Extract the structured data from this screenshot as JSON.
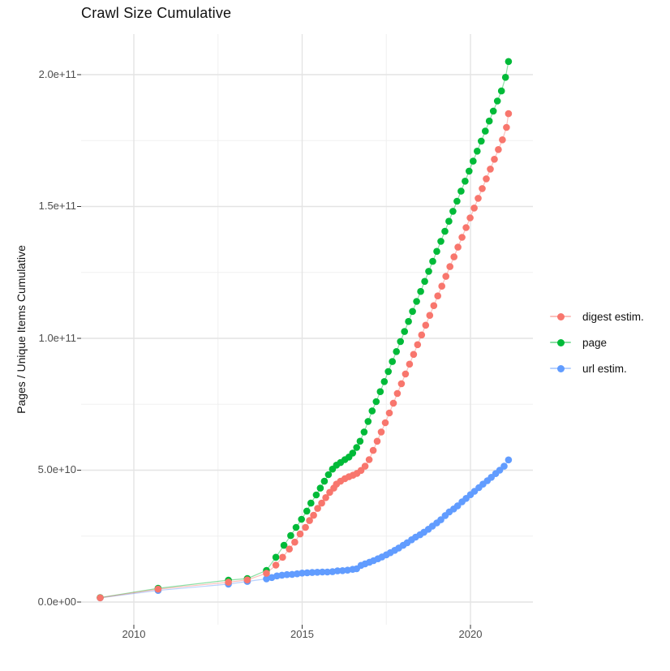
{
  "title": "Crawl Size Cumulative",
  "axes": {
    "x": {
      "ticks": [
        {
          "label": "2010",
          "year": 2010
        },
        {
          "label": "2015",
          "year": 2015
        },
        {
          "label": "2020",
          "year": 2020
        }
      ],
      "minor_years": [
        2012.5,
        2017.5
      ]
    },
    "y": {
      "title": "Pages / Unique Items Cumulative",
      "ticks": [
        {
          "label": "0.0e+00",
          "value_billions": 0
        },
        {
          "label": "5.0e+10",
          "value_billions": 50
        },
        {
          "label": "1.0e+11",
          "value_billions": 100
        },
        {
          "label": "1.5e+11",
          "value_billions": 150
        },
        {
          "label": "2.0e+11",
          "value_billions": 200
        }
      ],
      "minor_values_billions": [
        25,
        75,
        125,
        175
      ]
    }
  },
  "legend": {
    "items": [
      {
        "label": "digest estim.",
        "color": "#F8766D"
      },
      {
        "label": "page",
        "color": "#00BA38"
      },
      {
        "label": "url estim.",
        "color": "#619CFF"
      }
    ]
  },
  "chart_data": {
    "type": "scatter",
    "x_unit": "year (decimal)",
    "y_unit": "cumulative count, billions (1e9)",
    "title": "Crawl Size Cumulative",
    "xlabel": "",
    "ylabel": "Pages / Unique Items Cumulative",
    "xlim": [
      2008.4,
      2021.9
    ],
    "ylim_billions": [
      -9,
      215
    ],
    "grid": true,
    "legend_position": "right",
    "marker_radius_px": 4.3,
    "line_opacity": 0.45,
    "series": [
      {
        "name": "digest estim.",
        "color": "#F8766D",
        "points": [
          [
            2009.0,
            1.6
          ],
          [
            2010.72,
            4.9
          ],
          [
            2012.81,
            7.5
          ],
          [
            2013.37,
            8.4
          ],
          [
            2013.94,
            10.9
          ],
          [
            2014.22,
            14.0
          ],
          [
            2014.42,
            17.0
          ],
          [
            2014.62,
            20.1
          ],
          [
            2014.78,
            22.7
          ],
          [
            2014.94,
            25.8
          ],
          [
            2015.1,
            28.3
          ],
          [
            2015.22,
            30.9
          ],
          [
            2015.34,
            32.9
          ],
          [
            2015.46,
            35.5
          ],
          [
            2015.58,
            37.5
          ],
          [
            2015.7,
            39.6
          ],
          [
            2015.82,
            41.6
          ],
          [
            2015.94,
            43.2
          ],
          [
            2016.02,
            44.7
          ],
          [
            2016.14,
            45.8
          ],
          [
            2016.27,
            46.8
          ],
          [
            2016.39,
            47.5
          ],
          [
            2016.51,
            48.1
          ],
          [
            2016.63,
            48.8
          ],
          [
            2016.75,
            49.9
          ],
          [
            2016.87,
            51.5
          ],
          [
            2016.99,
            54.0
          ],
          [
            2017.11,
            57.5
          ],
          [
            2017.23,
            61.0
          ],
          [
            2017.35,
            64.5
          ],
          [
            2017.47,
            68.0
          ],
          [
            2017.59,
            71.7
          ],
          [
            2017.71,
            75.4
          ],
          [
            2017.83,
            79.1
          ],
          [
            2017.95,
            82.8
          ],
          [
            2018.07,
            86.5
          ],
          [
            2018.19,
            90.2
          ],
          [
            2018.31,
            93.9
          ],
          [
            2018.43,
            97.6
          ],
          [
            2018.55,
            101.3
          ],
          [
            2018.67,
            105.0
          ],
          [
            2018.79,
            108.7
          ],
          [
            2018.91,
            112.4
          ],
          [
            2019.03,
            116.1
          ],
          [
            2019.15,
            119.8
          ],
          [
            2019.27,
            123.5
          ],
          [
            2019.39,
            127.2
          ],
          [
            2019.51,
            130.9
          ],
          [
            2019.63,
            134.6
          ],
          [
            2019.75,
            138.3
          ],
          [
            2019.87,
            142.0
          ],
          [
            2019.99,
            145.7
          ],
          [
            2020.11,
            149.4
          ],
          [
            2020.23,
            153.1
          ],
          [
            2020.35,
            156.8
          ],
          [
            2020.47,
            160.5
          ],
          [
            2020.59,
            164.2
          ],
          [
            2020.71,
            167.9
          ],
          [
            2020.83,
            171.6
          ],
          [
            2020.95,
            175.3
          ],
          [
            2021.07,
            180.0
          ],
          [
            2021.13,
            185.2
          ]
        ]
      },
      {
        "name": "page",
        "color": "#00BA38",
        "points": [
          [
            2009.0,
            1.7
          ],
          [
            2010.72,
            5.2
          ],
          [
            2012.81,
            8.3
          ],
          [
            2013.37,
            8.9
          ],
          [
            2013.94,
            12.0
          ],
          [
            2014.22,
            17.0
          ],
          [
            2014.46,
            21.5
          ],
          [
            2014.66,
            25.2
          ],
          [
            2014.82,
            28.3
          ],
          [
            2014.98,
            31.4
          ],
          [
            2015.14,
            34.5
          ],
          [
            2015.26,
            37.5
          ],
          [
            2015.42,
            40.6
          ],
          [
            2015.54,
            43.2
          ],
          [
            2015.66,
            45.8
          ],
          [
            2015.78,
            48.3
          ],
          [
            2015.9,
            50.4
          ],
          [
            2016.02,
            51.9
          ],
          [
            2016.14,
            52.9
          ],
          [
            2016.27,
            54.0
          ],
          [
            2016.39,
            55.0
          ],
          [
            2016.5,
            56.5
          ],
          [
            2016.62,
            58.6
          ],
          [
            2016.72,
            61.0
          ],
          [
            2016.84,
            64.5
          ],
          [
            2016.96,
            68.5
          ],
          [
            2017.08,
            72.5
          ],
          [
            2017.2,
            76.0
          ],
          [
            2017.32,
            79.8
          ],
          [
            2017.44,
            83.6
          ],
          [
            2017.56,
            87.4
          ],
          [
            2017.68,
            91.2
          ],
          [
            2017.8,
            95.0
          ],
          [
            2017.92,
            98.8
          ],
          [
            2018.04,
            102.6
          ],
          [
            2018.16,
            106.4
          ],
          [
            2018.28,
            110.2
          ],
          [
            2018.4,
            114.0
          ],
          [
            2018.52,
            117.8
          ],
          [
            2018.64,
            121.6
          ],
          [
            2018.76,
            125.4
          ],
          [
            2018.88,
            129.2
          ],
          [
            2019.0,
            133.0
          ],
          [
            2019.12,
            136.8
          ],
          [
            2019.24,
            140.6
          ],
          [
            2019.36,
            144.4
          ],
          [
            2019.48,
            148.2
          ],
          [
            2019.6,
            152.0
          ],
          [
            2019.72,
            155.8
          ],
          [
            2019.84,
            159.6
          ],
          [
            2019.96,
            163.4
          ],
          [
            2020.08,
            167.2
          ],
          [
            2020.2,
            171.0
          ],
          [
            2020.32,
            174.8
          ],
          [
            2020.44,
            178.6
          ],
          [
            2020.56,
            182.4
          ],
          [
            2020.68,
            186.2
          ],
          [
            2020.8,
            190.0
          ],
          [
            2020.92,
            193.8
          ],
          [
            2021.04,
            199.0
          ],
          [
            2021.13,
            205.0
          ]
        ]
      },
      {
        "name": "url estim.",
        "color": "#619CFF",
        "points": [
          [
            2009.0,
            1.6
          ],
          [
            2010.72,
            4.4
          ],
          [
            2012.81,
            6.8
          ],
          [
            2013.37,
            7.8
          ],
          [
            2013.94,
            8.8
          ],
          [
            2014.1,
            9.3
          ],
          [
            2014.25,
            9.9
          ],
          [
            2014.4,
            10.2
          ],
          [
            2014.55,
            10.4
          ],
          [
            2014.7,
            10.5
          ],
          [
            2014.85,
            10.7
          ],
          [
            2015.0,
            11.0
          ],
          [
            2015.15,
            11.1
          ],
          [
            2015.3,
            11.2
          ],
          [
            2015.45,
            11.3
          ],
          [
            2015.6,
            11.4
          ],
          [
            2015.75,
            11.4
          ],
          [
            2015.9,
            11.5
          ],
          [
            2016.05,
            11.8
          ],
          [
            2016.2,
            11.9
          ],
          [
            2016.35,
            12.1
          ],
          [
            2016.5,
            12.4
          ],
          [
            2016.62,
            12.6
          ],
          [
            2016.75,
            13.9
          ],
          [
            2016.87,
            14.5
          ],
          [
            2017.0,
            15.1
          ],
          [
            2017.12,
            15.7
          ],
          [
            2017.25,
            16.4
          ],
          [
            2017.37,
            17.1
          ],
          [
            2017.5,
            17.9
          ],
          [
            2017.62,
            18.7
          ],
          [
            2017.75,
            19.6
          ],
          [
            2017.87,
            20.5
          ],
          [
            2018.0,
            21.5
          ],
          [
            2018.12,
            22.5
          ],
          [
            2018.25,
            23.6
          ],
          [
            2018.37,
            24.6
          ],
          [
            2018.5,
            25.5
          ],
          [
            2018.62,
            26.5
          ],
          [
            2018.75,
            27.6
          ],
          [
            2018.87,
            28.8
          ],
          [
            2019.0,
            30.0
          ],
          [
            2019.12,
            31.2
          ],
          [
            2019.25,
            32.8
          ],
          [
            2019.37,
            34.2
          ],
          [
            2019.5,
            35.3
          ],
          [
            2019.62,
            36.5
          ],
          [
            2019.75,
            38.0
          ],
          [
            2019.87,
            39.3
          ],
          [
            2020.0,
            40.7
          ],
          [
            2020.12,
            42.0
          ],
          [
            2020.25,
            43.4
          ],
          [
            2020.37,
            44.7
          ],
          [
            2020.5,
            46.0
          ],
          [
            2020.62,
            47.3
          ],
          [
            2020.75,
            48.7
          ],
          [
            2020.87,
            50.0
          ],
          [
            2021.0,
            51.5
          ],
          [
            2021.13,
            53.9
          ]
        ]
      }
    ]
  }
}
